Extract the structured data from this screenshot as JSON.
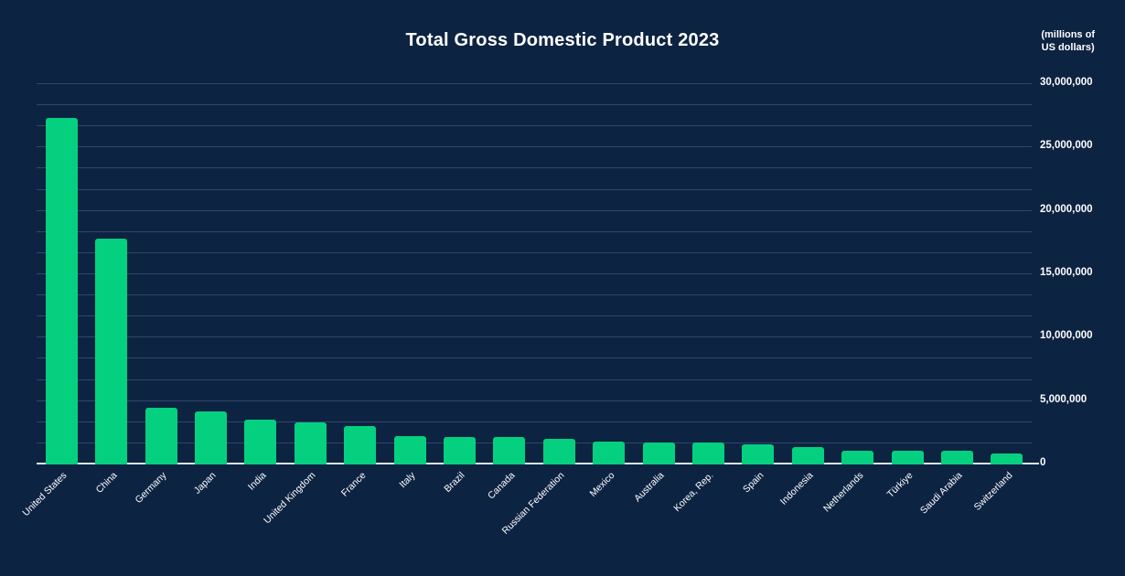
{
  "header": {
    "title": "Total Gross Domestic Product 2023",
    "unit_note_line1": "(millions of",
    "unit_note_line2": "US dollars)"
  },
  "chart_data": {
    "type": "bar",
    "title": "Total Gross Domestic Product 2023",
    "unit_note": "(millions of US dollars)",
    "categories": [
      "United States",
      "China",
      "Germany",
      "Japan",
      "India",
      "United Kingdom",
      "France",
      "Italy",
      "Brazil",
      "Canada",
      "Russian Federation",
      "Mexico",
      "Australia",
      "Korea, Rep.",
      "Spain",
      "Indonesia",
      "Netherlands",
      "Türkiye",
      "Saudi Arabia",
      "Switzerland"
    ],
    "values": [
      27360935,
      17794782,
      4456081,
      4212945,
      3549919,
      3340032,
      3030904,
      2254851,
      2173666,
      2140086,
      2021421,
      1788887,
      1723827,
      1712793,
      1580695,
      1371171,
      1118125,
      1108485,
      1067583,
      884940
    ],
    "xlabel": "",
    "ylabel": "(millions of US dollars)",
    "ylim": [
      0,
      30000000
    ],
    "y_major_tick_step": 5000000,
    "y_minor_divisions_per_major": 3,
    "y_tick_labels": [
      "0",
      "5,000,000",
      "10,000,000",
      "15,000,000",
      "20,000,000",
      "25,000,000",
      "30,000,000"
    ],
    "grid": "horizontal-on",
    "legend": "none",
    "y_axis_side": "right",
    "x_label_rotation_deg": 45,
    "colors": {
      "background": "#0D2342",
      "bar": "#05D07F",
      "gridline": "#31476B",
      "axis_line": "#DCE4EF",
      "text": "#FFFFFF"
    }
  }
}
